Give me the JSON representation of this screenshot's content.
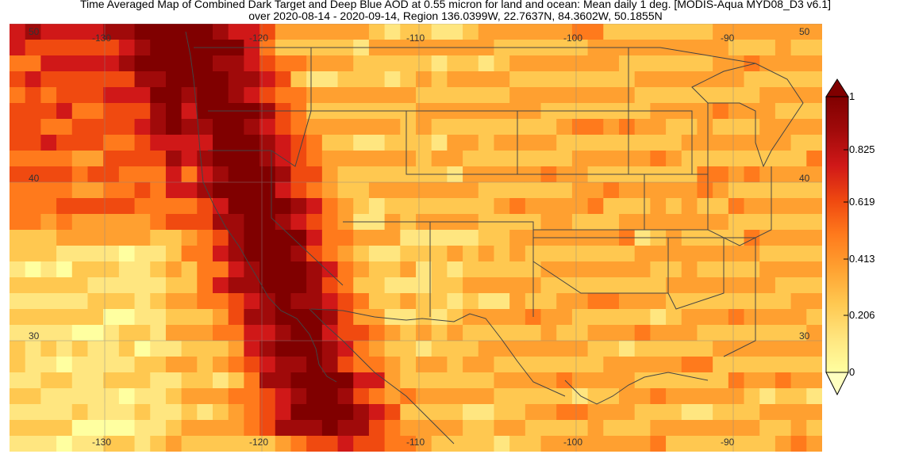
{
  "title": {
    "line1": "Time Averaged Map of Combined Dark Target and Deep Blue AOD at 0.55 micron for land and ocean: Mean daily 1 deg. [MODIS-Aqua MYD08_D3 v6.1]",
    "line2": "over 2020-08-14 - 2020-09-14, Region 136.0399W, 22.7637N, 84.3602W, 50.1855N"
  },
  "map": {
    "lon_labels": [
      "-130",
      "-120",
      "-110",
      "-100",
      "-90"
    ],
    "lat_labels": [
      "50",
      "40",
      "30"
    ],
    "lon_range": [
      -136.0399,
      -84.3602
    ],
    "lat_range": [
      22.7637,
      50.1855
    ]
  },
  "colorbar": {
    "ticks": [
      "1",
      "0.825",
      "0.619",
      "0.413",
      "0.206",
      "0"
    ],
    "colors": [
      "#ffffa0",
      "#ffe680",
      "#ffc850",
      "#ffa030",
      "#ff7a1c",
      "#f04a10",
      "#d01818",
      "#a00a0a",
      "#800000"
    ]
  }
}
